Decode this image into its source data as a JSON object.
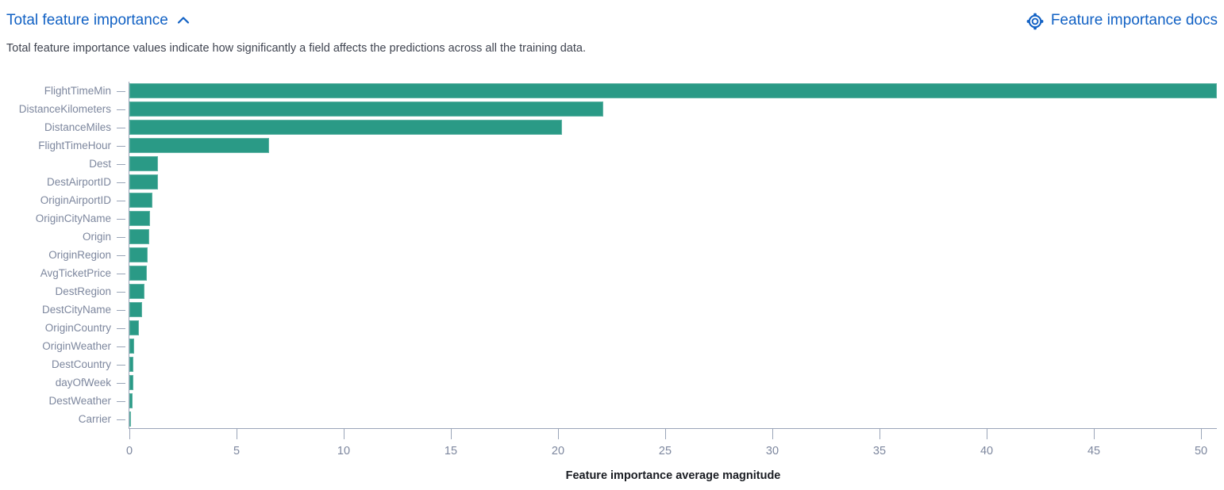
{
  "header": {
    "title": "Total feature importance",
    "docs_link_label": "Feature importance docs"
  },
  "icons": {
    "collapse": "chevron-up",
    "docs": "help-life-ring"
  },
  "description": "Total feature importance values indicate how significantly a field affects the predictions across all the training data.",
  "colors": {
    "bar": "#2a9a86",
    "blue": "#1161c4",
    "axis_line": "#9aa5b8",
    "tick_label": "#7d879e",
    "description_text": "#3f4450",
    "axis_title": "#1a1d23"
  },
  "chart_data": {
    "type": "bar",
    "orientation": "horizontal",
    "title": "Total feature importance",
    "xlabel": "Feature importance average magnitude",
    "ylabel": "",
    "categories": [
      "FlightTimeMin",
      "DistanceKilometers",
      "DistanceMiles",
      "FlightTimeHour",
      "Dest",
      "DestAirportID",
      "OriginAirportID",
      "OriginCityName",
      "Origin",
      "OriginRegion",
      "AvgTicketPrice",
      "DestRegion",
      "DestCityName",
      "OriginCountry",
      "OriginWeather",
      "DestCountry",
      "dayOfWeek",
      "DestWeather",
      "Carrier"
    ],
    "values": [
      50.74,
      22.1,
      20.2,
      6.5,
      1.35,
      1.32,
      1.07,
      0.97,
      0.94,
      0.86,
      0.83,
      0.71,
      0.59,
      0.43,
      0.21,
      0.2,
      0.18,
      0.16,
      0.06
    ],
    "x_ticks": [
      0,
      5,
      10,
      15,
      20,
      25,
      30,
      35,
      40,
      45,
      50
    ],
    "xlim": [
      0,
      50.74
    ],
    "grid": false,
    "legend": false,
    "bar_color": "#2a9a86"
  }
}
